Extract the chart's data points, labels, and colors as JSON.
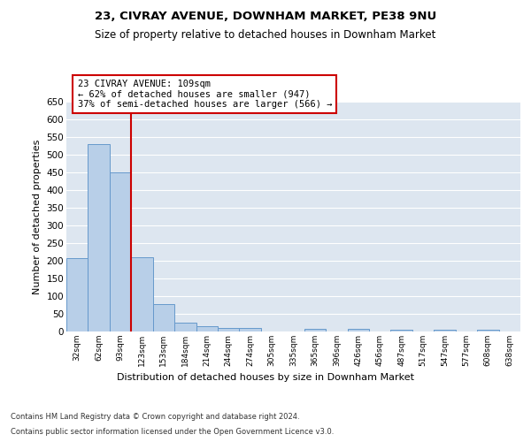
{
  "title1": "23, CIVRAY AVENUE, DOWNHAM MARKET, PE38 9NU",
  "title2": "Size of property relative to detached houses in Downham Market",
  "xlabel": "Distribution of detached houses by size in Downham Market",
  "ylabel": "Number of detached properties",
  "categories": [
    "32sqm",
    "62sqm",
    "93sqm",
    "123sqm",
    "153sqm",
    "184sqm",
    "214sqm",
    "244sqm",
    "274sqm",
    "305sqm",
    "335sqm",
    "365sqm",
    "396sqm",
    "426sqm",
    "456sqm",
    "487sqm",
    "517sqm",
    "547sqm",
    "577sqm",
    "608sqm",
    "638sqm"
  ],
  "values": [
    207,
    530,
    450,
    210,
    78,
    26,
    15,
    11,
    9,
    0,
    0,
    8,
    0,
    8,
    0,
    6,
    0,
    6,
    0,
    6,
    0
  ],
  "bar_color": "#b8cfe8",
  "bar_edgecolor": "#6699cc",
  "bg_color": "#dde6f0",
  "grid_color": "#ffffff",
  "vline_color": "#cc0000",
  "annotation_text": "23 CIVRAY AVENUE: 109sqm\n← 62% of detached houses are smaller (947)\n37% of semi-detached houses are larger (566) →",
  "annotation_box_facecolor": "#ffffff",
  "annotation_box_edgecolor": "#cc0000",
  "footer1": "Contains HM Land Registry data © Crown copyright and database right 2024.",
  "footer2": "Contains public sector information licensed under the Open Government Licence v3.0.",
  "ylim": [
    0,
    650
  ],
  "yticks": [
    0,
    50,
    100,
    150,
    200,
    250,
    300,
    350,
    400,
    450,
    500,
    550,
    600,
    650
  ]
}
